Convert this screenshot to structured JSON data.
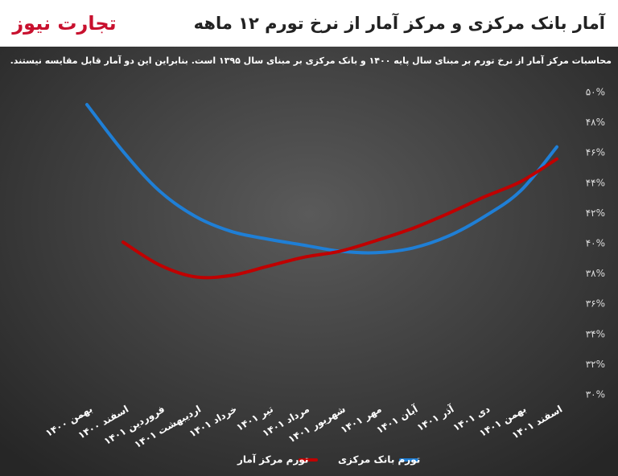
{
  "chart_data": {
    "type": "line",
    "logo": "تجارت نیوز",
    "title": "آمار بانک مرکزی و مرکز آمار از نرخ تورم ۱۲ ماهه",
    "subtitle": "محاسبات مرکز آمار از نرخ تورم بر مبنای سال پایه ۱۴۰۰ و بانک مرکزی بر مبنای سال ۱۳۹۵ است. بنابراین این دو آمار قابل مقایسه نیستند.",
    "categories": [
      "بهمن ۱۴۰۰",
      "اسفند ۱۴۰۰",
      "فروردین ۱۴۰۱",
      "اردیبهشت ۱۴۰۱",
      "خرداد ۱۴۰۱",
      "تیر ۱۴۰۱",
      "مرداد ۱۴۰۱",
      "شهریور ۱۴۰۱",
      "مهر ۱۴۰۱",
      "آبان ۱۴۰۱",
      "آذر ۱۴۰۱",
      "دی ۱۴۰۱",
      "بهمن ۱۴۰۱",
      "اسفند ۱۴۰۱"
    ],
    "series": [
      {
        "name": "تورم بانک مرکزی",
        "color": "#1f7fd6",
        "values": [
          49.2,
          46.1,
          43.5,
          41.8,
          40.8,
          40.3,
          39.9,
          39.5,
          39.4,
          39.7,
          40.5,
          41.8,
          43.5,
          46.4
        ]
      },
      {
        "name": "تورم مرکز آمار",
        "color": "#c00000",
        "values": [
          null,
          40.1,
          38.6,
          37.8,
          37.9,
          38.5,
          39.1,
          39.5,
          40.2,
          41.0,
          42.0,
          43.1,
          44.1,
          45.6
        ]
      }
    ],
    "ylim": [
      30,
      50
    ],
    "yticks": [
      {
        "value": 30,
        "label": "۳۰%"
      },
      {
        "value": 32,
        "label": "۳۲%"
      },
      {
        "value": 34,
        "label": "۳۴%"
      },
      {
        "value": 36,
        "label": "۳۶%"
      },
      {
        "value": 38,
        "label": "۳۸%"
      },
      {
        "value": 40,
        "label": "۴۰%"
      },
      {
        "value": 42,
        "label": "۴۲%"
      },
      {
        "value": 44,
        "label": "۴۴%"
      },
      {
        "value": 46,
        "label": "۴۶%"
      },
      {
        "value": 48,
        "label": "۴۸%"
      },
      {
        "value": 50,
        "label": "۵۰%"
      }
    ],
    "legend": "bottom",
    "grid": false
  }
}
